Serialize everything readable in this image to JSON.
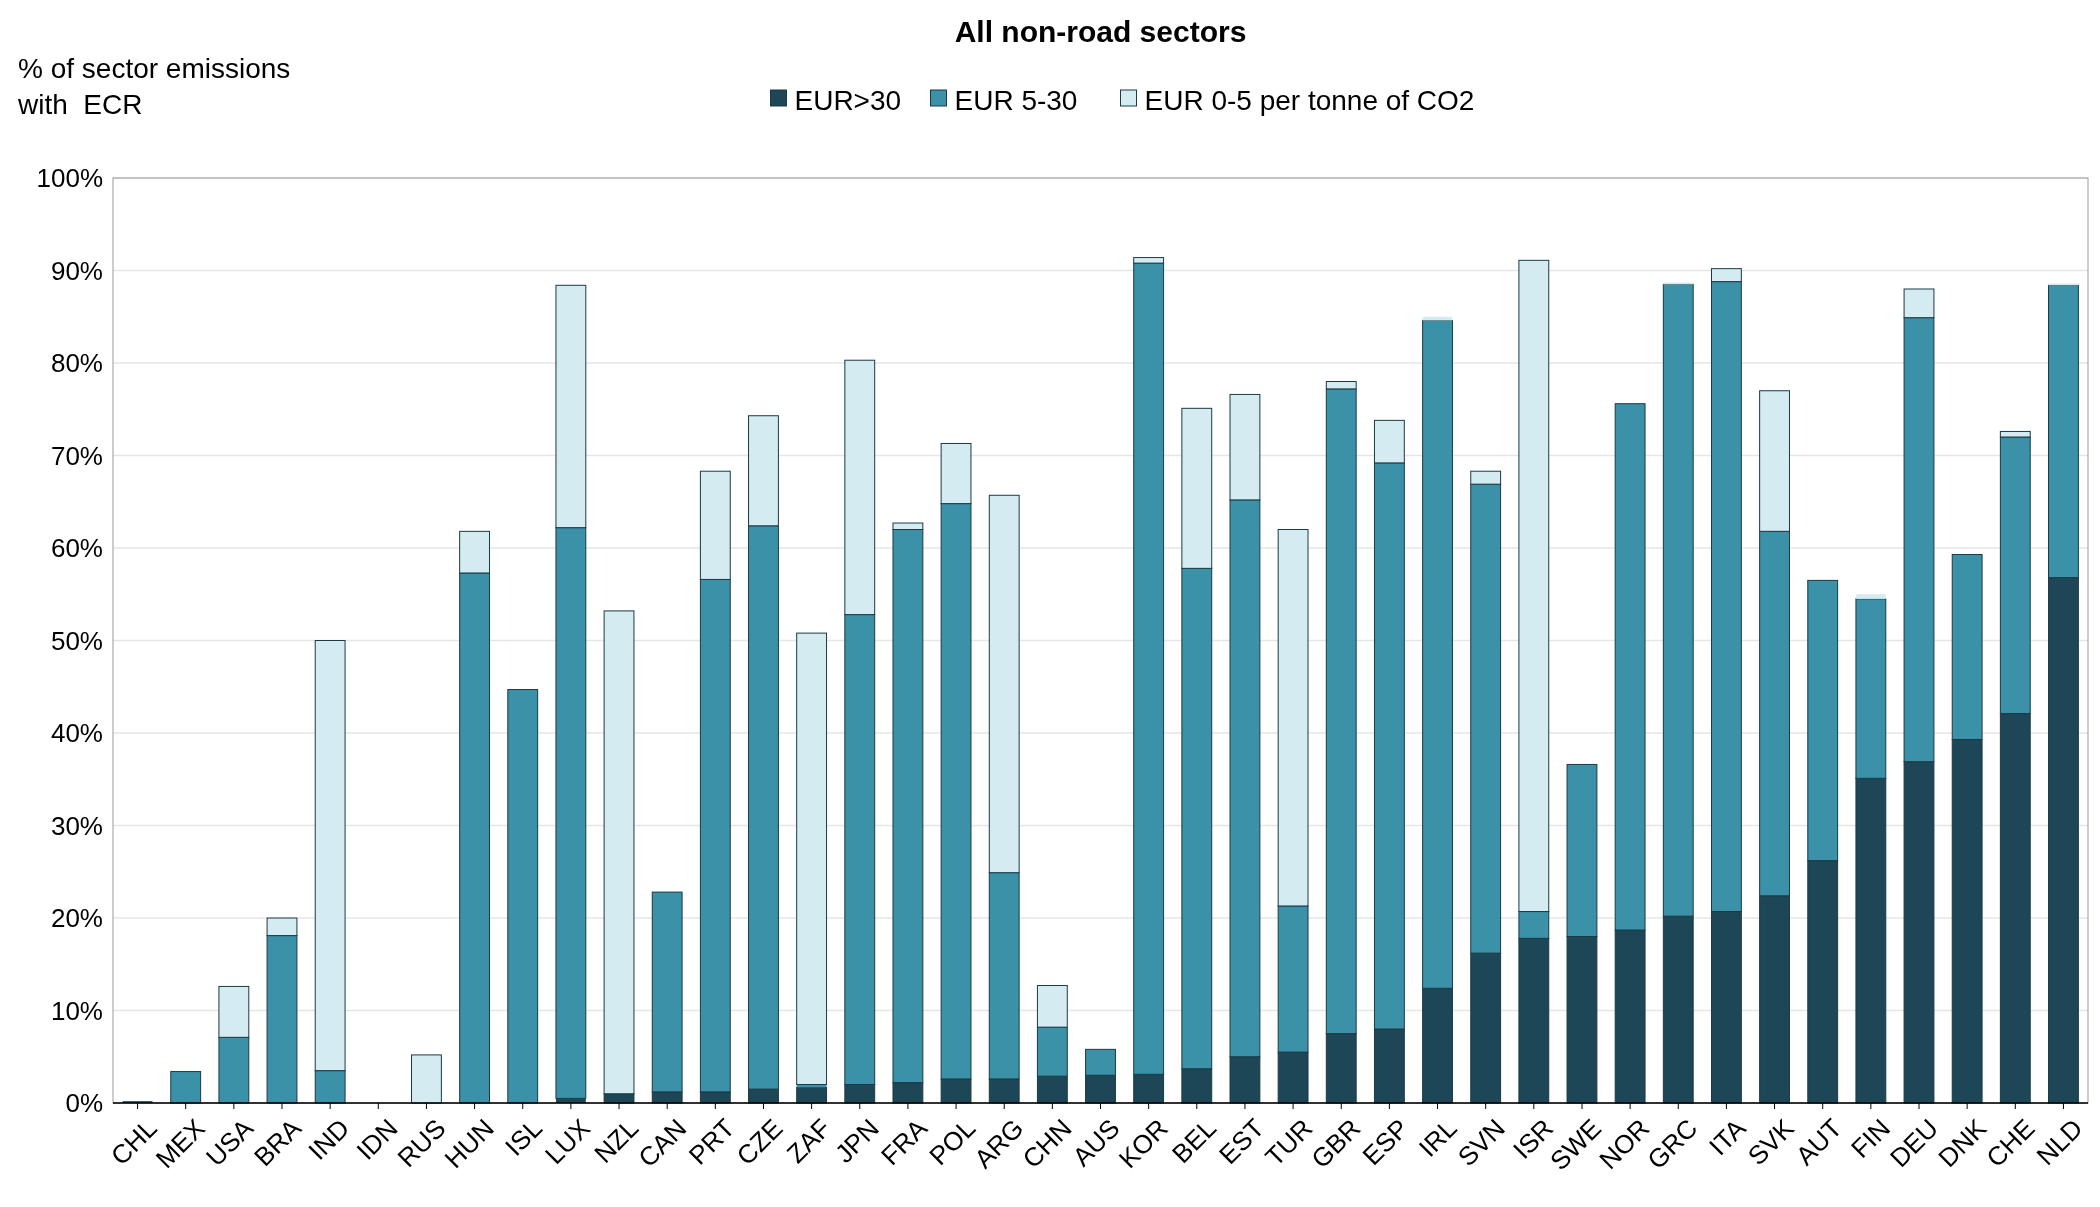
{
  "chart_data": {
    "type": "bar",
    "stacked": true,
    "title": "All non-road sectors",
    "ylabel": "% of sector emissions\nwith  ECR",
    "categories": [
      "CHL",
      "MEX",
      "USA",
      "BRA",
      "IND",
      "IDN",
      "RUS",
      "HUN",
      "ISL",
      "LUX",
      "NZL",
      "CAN",
      "PRT",
      "CZE",
      "ZAF",
      "JPN",
      "FRA",
      "POL",
      "ARG",
      "CHN",
      "AUS",
      "KOR",
      "BEL",
      "EST",
      "TUR",
      "GBR",
      "ESP",
      "IRL",
      "SVN",
      "ISR",
      "SWE",
      "NOR",
      "GRC",
      "ITA",
      "SVK",
      "AUT",
      "FIN",
      "DEU",
      "DNK",
      "CHE",
      "NLD"
    ],
    "series": [
      {
        "name": "EUR>30",
        "color": "#1d4756",
        "values": [
          0.2,
          0,
          0,
          0,
          0,
          0,
          0,
          null,
          null,
          0.5,
          1.0,
          1.2,
          1.2,
          1.5,
          1.7,
          2.0,
          2.2,
          2.6,
          2.6,
          2.9,
          3.0,
          3.1,
          3.7,
          5.0,
          5.5,
          7.5,
          8.0,
          12.4,
          16.2,
          17.8,
          18.0,
          18.7,
          20.2,
          20.7,
          22.4,
          26.2,
          35.1,
          36.9,
          39.3,
          42.1,
          56.8
        ]
      },
      {
        "name": "EUR 5-30",
        "color": "#3a91a8",
        "values": [
          0,
          3.4,
          7.1,
          18.1,
          3.5,
          0,
          0,
          57.3,
          44.7,
          61.7,
          0,
          21.6,
          55.4,
          60.9,
          0.3,
          50.8,
          59.8,
          62.2,
          22.3,
          5.3,
          2.8,
          87.7,
          54.1,
          60.2,
          15.8,
          69.7,
          61.2,
          72.2,
          50.7,
          2.9,
          18.6,
          56.9,
          68.3,
          68.1,
          39.4,
          30.3,
          19.4,
          48.0,
          20.0,
          29.9,
          31.6
        ]
      },
      {
        "name": "EUR 0-5 per tonne of CO2",
        "color": "#d4ebf2",
        "values": [
          0,
          0,
          5.5,
          1.9,
          46.5,
          0,
          5.2,
          4.5,
          0,
          26.2,
          52.2,
          0,
          11.7,
          11.9,
          48.8,
          27.5,
          0.7,
          6.5,
          40.8,
          4.5,
          0,
          0.6,
          17.3,
          11.4,
          40.7,
          0.8,
          4.6,
          0.4,
          1.4,
          70.4,
          0,
          0,
          0.2,
          1.4,
          15.2,
          0,
          0.5,
          3.1,
          0,
          0.6,
          0.2
        ]
      }
    ],
    "ylim": [
      0,
      100
    ],
    "yticks": [
      {
        "value": 0,
        "label": "0%"
      },
      {
        "value": 10,
        "label": "10%"
      },
      {
        "value": 20,
        "label": "20%"
      },
      {
        "value": 30,
        "label": "30%"
      },
      {
        "value": 40,
        "label": "40%"
      },
      {
        "value": 50,
        "label": "50%"
      },
      {
        "value": 60,
        "label": "60%"
      },
      {
        "value": 70,
        "label": "70%"
      },
      {
        "value": 80,
        "label": "80%"
      },
      {
        "value": 90,
        "label": "90%"
      },
      {
        "value": 100,
        "label": "100%"
      }
    ],
    "grid": "y",
    "legend": "top"
  }
}
